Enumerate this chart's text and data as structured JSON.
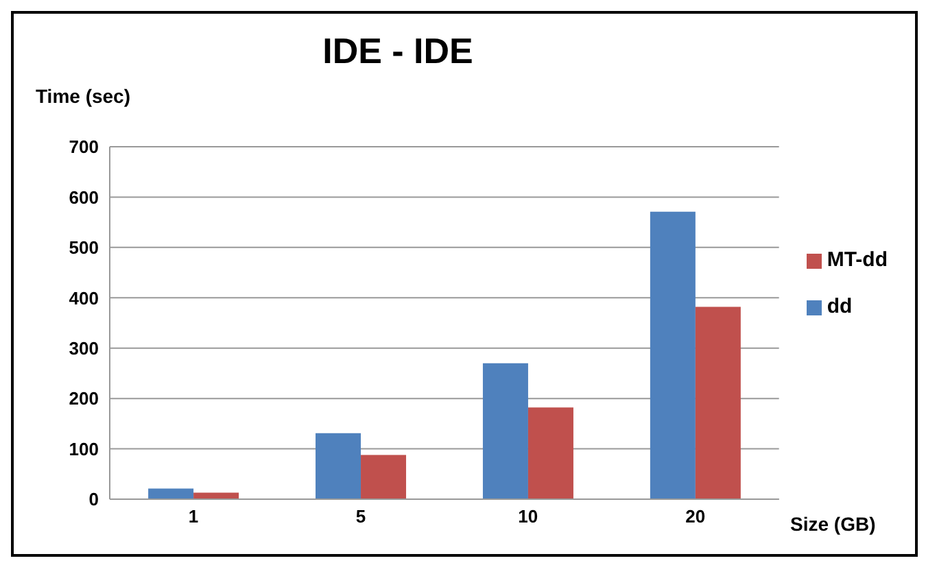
{
  "chart_data": {
    "type": "bar",
    "title": "IDE - IDE",
    "ylabel": "Time (sec)",
    "xlabel": "Size (GB)",
    "categories": [
      "1",
      "5",
      "10",
      "20"
    ],
    "series": [
      {
        "name": "dd",
        "color": "#4f81bd",
        "values": [
          21,
          131,
          270,
          571
        ]
      },
      {
        "name": "MT-dd",
        "color": "#c0504d",
        "values": [
          13,
          88,
          182,
          382
        ]
      }
    ],
    "ylim": [
      0,
      700
    ],
    "yticks": [
      0,
      100,
      200,
      300,
      400,
      500,
      600,
      700
    ],
    "grid": "y",
    "legend": "right"
  }
}
